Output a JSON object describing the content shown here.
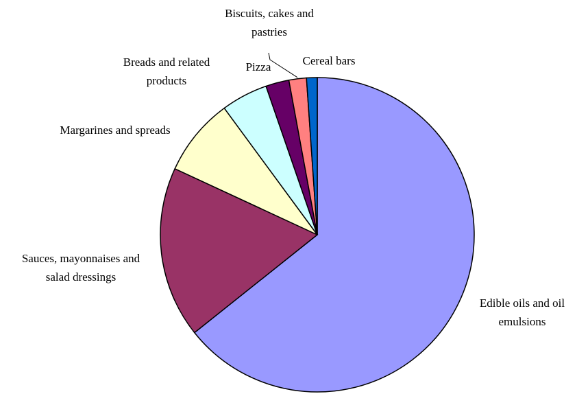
{
  "chart_data": {
    "type": "pie",
    "title": "",
    "start_angle_deg": 0,
    "direction": "clockwise",
    "legend": "none",
    "slices": [
      {
        "label": [
          "Edible oils and oil",
          "emulsions"
        ],
        "value": 64.3,
        "color": "#9999ff"
      },
      {
        "label": [
          "Sauces, mayonnaises and",
          "salad dressings"
        ],
        "value": 17.6,
        "color": "#993366"
      },
      {
        "label": [
          "Margarines and spreads"
        ],
        "value": 8.0,
        "color": "#ffffcc"
      },
      {
        "label": [
          "Breads and related",
          "products"
        ],
        "value": 4.8,
        "color": "#ccffff"
      },
      {
        "label": [
          "Pizza"
        ],
        "value": 2.4,
        "color": "#660066"
      },
      {
        "label": [
          "Biscuits, cakes and",
          "pastries"
        ],
        "value": 1.8,
        "color": "#ff8080"
      },
      {
        "label": [
          "Cereal bars"
        ],
        "value": 1.1,
        "color": "#0066cc"
      }
    ]
  }
}
